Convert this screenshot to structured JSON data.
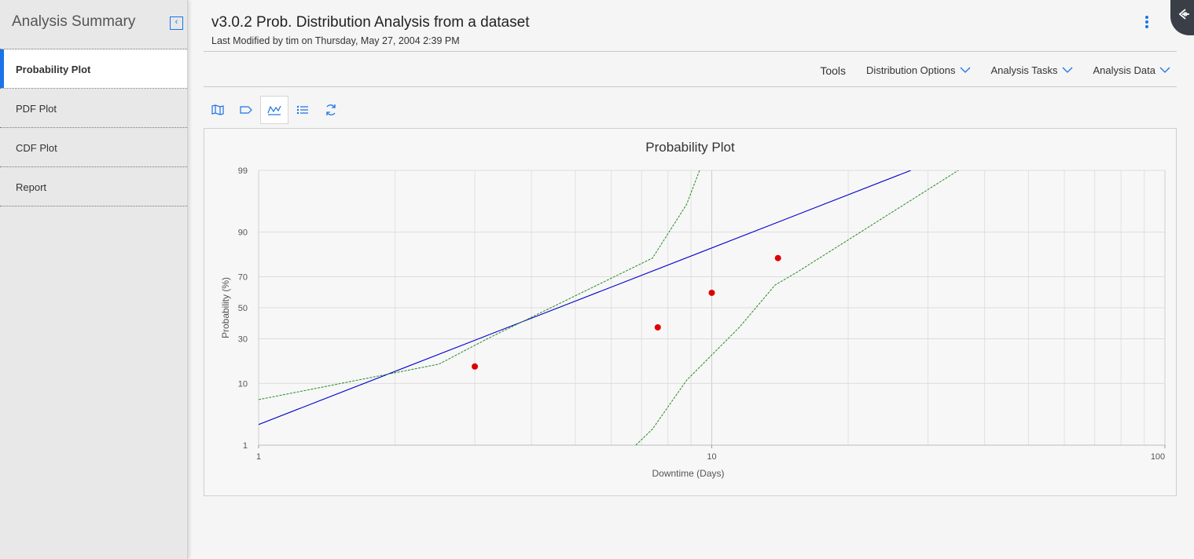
{
  "sidebar": {
    "title": "Analysis Summary",
    "items": [
      {
        "label": "Probability Plot"
      },
      {
        "label": "PDF Plot"
      },
      {
        "label": "CDF Plot"
      },
      {
        "label": "Report"
      }
    ]
  },
  "header": {
    "title": "v3.0.2 Prob. Distribution Analysis from a dataset",
    "subtitle": "Last Modified by tim on Thursday, May 27, 2004 2:39 PM"
  },
  "menu": {
    "tools": "Tools",
    "distribution_options": "Distribution Options",
    "analysis_tasks": "Analysis Tasks",
    "analysis_data": "Analysis Data"
  },
  "toolbar": {
    "icons": [
      "map-icon",
      "label-icon",
      "chart-icon",
      "list-icon",
      "refresh-icon"
    ],
    "active": "chart-icon"
  },
  "colors": {
    "accent": "#1a73e8",
    "fit_line": "#0000cc",
    "confidence_bounds": "#228b22",
    "points": "#e00000"
  },
  "chart_data": {
    "type": "scatter",
    "title": "Probability Plot",
    "xlabel": "Downtime (Days)",
    "ylabel": "Probability (%)",
    "x_scale": "log",
    "y_scale": "probability",
    "xlim": [
      1,
      100
    ],
    "ylim": [
      1,
      99
    ],
    "x_ticks": [
      1,
      10,
      100
    ],
    "y_ticks": [
      1,
      10,
      30,
      50,
      70,
      90,
      99
    ],
    "grid": true,
    "series": [
      {
        "kind": "points",
        "x": [
          3,
          7.6,
          10,
          14
        ],
        "y": [
          16,
          37,
          60,
          80
        ]
      },
      {
        "kind": "line",
        "x": [
          1,
          27.5
        ],
        "y": [
          2.4,
          99
        ]
      },
      {
        "kind": "line",
        "x": [
          1,
          2.5,
          3.2,
          7.4,
          8.8,
          9.4
        ],
        "y": [
          6,
          17,
          30,
          80,
          96,
          99
        ]
      },
      {
        "kind": "line",
        "x": [
          6.8,
          7.4,
          8.8,
          11.5,
          13.8,
          15.5,
          35
        ],
        "y": [
          1,
          2,
          11,
          37,
          65,
          73,
          99
        ]
      }
    ]
  }
}
